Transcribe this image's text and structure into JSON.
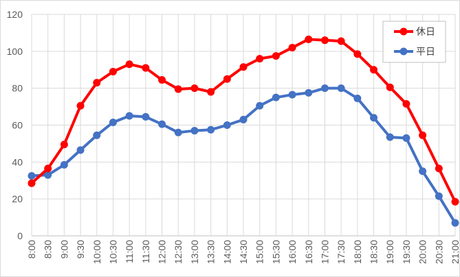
{
  "chart_data": {
    "type": "line",
    "title": "",
    "xlabel": "",
    "ylabel": "",
    "ylim": [
      0,
      120
    ],
    "yticks": [
      0,
      20,
      40,
      60,
      80,
      100,
      120
    ],
    "grid": true,
    "legend_position": "top-right",
    "categories": [
      "8:00",
      "8:30",
      "9:00",
      "9:30",
      "10:00",
      "10:30",
      "11:00",
      "11:30",
      "12:00",
      "12:30",
      "13:00",
      "13:30",
      "14:00",
      "14:30",
      "15:00",
      "15:30",
      "16:00",
      "16:30",
      "17:00",
      "17:30",
      "18:00",
      "18:30",
      "19:00",
      "19:30",
      "20:00",
      "20:30",
      "21:00"
    ],
    "series": [
      {
        "name": "休日",
        "color": "#ff0000",
        "values": [
          28.5,
          36.5,
          49.5,
          70.5,
          83,
          89,
          93,
          91,
          84.5,
          79.5,
          80,
          78,
          85,
          91.5,
          96,
          97.5,
          102,
          106.5,
          106,
          105.5,
          98.5,
          90,
          80.5,
          71.5,
          54.5,
          36.5,
          18.5
        ]
      },
      {
        "name": "平日",
        "color": "#4472c4",
        "values": [
          32.5,
          33,
          38.5,
          46.5,
          54.5,
          61.5,
          65,
          64.5,
          60.5,
          56,
          57,
          57.5,
          60,
          63,
          70.5,
          75,
          76.5,
          77.5,
          80,
          80,
          74.5,
          64,
          53.5,
          53,
          35,
          21.5,
          7
        ]
      }
    ]
  }
}
